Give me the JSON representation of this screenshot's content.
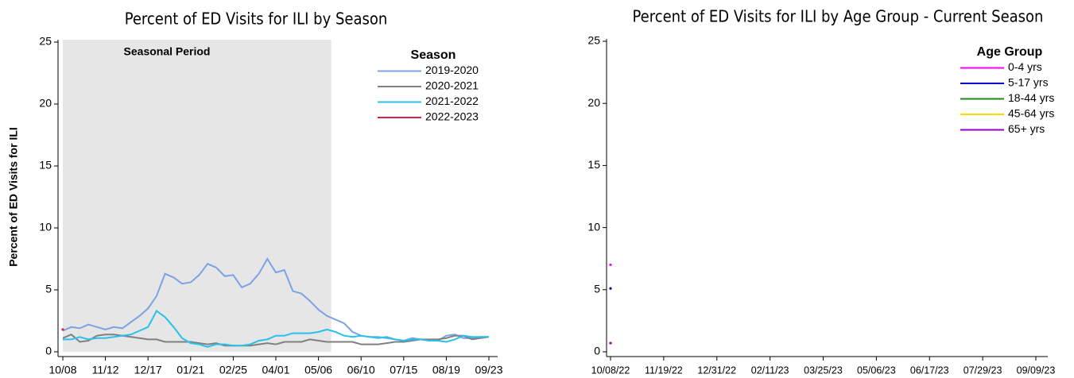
{
  "chart_data": [
    {
      "type": "line",
      "title": "Percent of ED Visits for ILI by Season",
      "y_label": "Percent of ED Visits for ILI",
      "categories": [
        "10/08",
        null,
        null,
        null,
        null,
        "11/12",
        null,
        null,
        null,
        null,
        "12/17",
        null,
        null,
        null,
        null,
        "01/21",
        null,
        null,
        null,
        null,
        "02/25",
        null,
        null,
        null,
        null,
        "04/01",
        null,
        null,
        null,
        null,
        "05/06",
        null,
        null,
        null,
        null,
        "06/10",
        null,
        null,
        null,
        null,
        "07/15",
        null,
        null,
        null,
        null,
        "08/19",
        null,
        null,
        null,
        null,
        "09/23"
      ],
      "ylim": [
        0,
        25
      ],
      "yticks": [
        0,
        5,
        10,
        15,
        20,
        25
      ],
      "seasonal_period": {
        "label": "Seasonal Period",
        "start": 0,
        "end": 31.5
      },
      "legend_title": "Season",
      "legend": "upper right",
      "series": [
        {
          "name": "2019-2020",
          "color": "#7ba3e3",
          "values": [
            1.7,
            2.0,
            1.9,
            2.2,
            2.0,
            1.8,
            2.0,
            1.9,
            2.4,
            2.9,
            3.5,
            4.5,
            6.3,
            6.0,
            5.5,
            5.6,
            6.2,
            7.1,
            6.8,
            6.1,
            6.2,
            5.2,
            5.5,
            6.3,
            7.5,
            6.4,
            6.6,
            4.9,
            4.7,
            4.1,
            3.4,
            2.9,
            2.6,
            2.3,
            1.6,
            1.3,
            1.2,
            1.2,
            1.1,
            1.0,
            0.9,
            1.1,
            1.0,
            0.9,
            0.9,
            1.3,
            1.4,
            1.1,
            1.1,
            1.2,
            1.2
          ]
        },
        {
          "name": "2020-2021",
          "color": "#808080",
          "values": [
            1.1,
            1.4,
            0.8,
            0.9,
            1.3,
            1.4,
            1.4,
            1.3,
            1.2,
            1.1,
            1.0,
            1.0,
            0.8,
            0.8,
            0.8,
            0.8,
            0.7,
            0.6,
            0.7,
            0.5,
            0.5,
            0.5,
            0.5,
            0.6,
            0.7,
            0.6,
            0.8,
            0.8,
            0.8,
            1.0,
            0.9,
            0.8,
            0.8,
            0.8,
            0.8,
            0.6,
            0.6,
            0.6,
            0.7,
            0.8,
            0.8,
            0.9,
            1.0,
            1.0,
            1.0,
            1.1,
            1.3,
            1.3,
            1.0,
            1.1,
            1.2
          ]
        },
        {
          "name": "2021-2022",
          "color": "#29c0ec",
          "values": [
            1.0,
            1.0,
            1.2,
            1.0,
            1.1,
            1.1,
            1.2,
            1.3,
            1.4,
            1.7,
            2.0,
            3.3,
            2.8,
            2.0,
            1.1,
            0.7,
            0.6,
            0.4,
            0.6,
            0.6,
            0.5,
            0.5,
            0.6,
            0.9,
            1.0,
            1.3,
            1.3,
            1.5,
            1.5,
            1.5,
            1.6,
            1.8,
            1.6,
            1.3,
            1.2,
            1.3,
            1.2,
            1.1,
            1.2,
            1.0,
            0.9,
            1.0,
            1.0,
            0.9,
            0.9,
            0.8,
            1.0,
            1.3,
            1.2,
            1.2,
            1.2
          ]
        },
        {
          "name": "2022-2023",
          "color": "#d6224a",
          "values": [
            1.8,
            null,
            null,
            null,
            null,
            null,
            null,
            null,
            null,
            null,
            null,
            null,
            null,
            null,
            null,
            null,
            null,
            null,
            null,
            null,
            null,
            null,
            null,
            null,
            null,
            null,
            null,
            null,
            null,
            null,
            null,
            null,
            null,
            null,
            null,
            null,
            null,
            null,
            null,
            null,
            null,
            null,
            null,
            null,
            null,
            null,
            null,
            null,
            null,
            null,
            null
          ]
        }
      ]
    },
    {
      "type": "line",
      "title": "Percent of ED Visits for ILI by Age Group - Current Season",
      "categories": [
        "10/08/22",
        null,
        null,
        null,
        null,
        null,
        "11/19/22",
        null,
        null,
        null,
        null,
        null,
        "12/31/22",
        null,
        null,
        null,
        null,
        null,
        "02/11/23",
        null,
        null,
        null,
        null,
        null,
        "03/25/23",
        null,
        null,
        null,
        null,
        null,
        "05/06/23",
        null,
        null,
        null,
        null,
        null,
        "06/17/23",
        null,
        null,
        null,
        null,
        null,
        "07/29/23",
        null,
        null,
        null,
        null,
        null,
        "09/09/23"
      ],
      "ylim": [
        0,
        25
      ],
      "yticks": [
        0,
        5,
        10,
        15,
        20,
        25
      ],
      "legend_title": "Age Group",
      "legend": "upper right",
      "series": [
        {
          "name": "0-4 yrs",
          "color": "#ff00ff",
          "values": [
            7.0,
            null,
            null,
            null,
            null,
            null,
            null,
            null,
            null,
            null,
            null,
            null,
            null,
            null,
            null,
            null,
            null,
            null,
            null,
            null,
            null,
            null,
            null,
            null,
            null,
            null,
            null,
            null,
            null,
            null,
            null,
            null,
            null,
            null,
            null,
            null,
            null,
            null,
            null,
            null,
            null,
            null,
            null,
            null,
            null,
            null,
            null,
            null,
            null
          ]
        },
        {
          "name": "5-17 yrs",
          "color": "#0000cc",
          "values": [
            5.1,
            null,
            null,
            null,
            null,
            null,
            null,
            null,
            null,
            null,
            null,
            null,
            null,
            null,
            null,
            null,
            null,
            null,
            null,
            null,
            null,
            null,
            null,
            null,
            null,
            null,
            null,
            null,
            null,
            null,
            null,
            null,
            null,
            null,
            null,
            null,
            null,
            null,
            null,
            null,
            null,
            null,
            null,
            null,
            null,
            null,
            null,
            null,
            null
          ]
        },
        {
          "name": "18-44 yrs",
          "color": "#1a8a1a",
          "values": [
            0.7,
            null,
            null,
            null,
            null,
            null,
            null,
            null,
            null,
            null,
            null,
            null,
            null,
            null,
            null,
            null,
            null,
            null,
            null,
            null,
            null,
            null,
            null,
            null,
            null,
            null,
            null,
            null,
            null,
            null,
            null,
            null,
            null,
            null,
            null,
            null,
            null,
            null,
            null,
            null,
            null,
            null,
            null,
            null,
            null,
            null,
            null,
            null,
            null
          ]
        },
        {
          "name": "45-64 yrs",
          "color": "#ffd700",
          "values": [
            0.7,
            null,
            null,
            null,
            null,
            null,
            null,
            null,
            null,
            null,
            null,
            null,
            null,
            null,
            null,
            null,
            null,
            null,
            null,
            null,
            null,
            null,
            null,
            null,
            null,
            null,
            null,
            null,
            null,
            null,
            null,
            null,
            null,
            null,
            null,
            null,
            null,
            null,
            null,
            null,
            null,
            null,
            null,
            null,
            null,
            null,
            null,
            null,
            null
          ]
        },
        {
          "name": "65+ yrs",
          "color": "#9900cc",
          "values": [
            0.7,
            null,
            null,
            null,
            null,
            null,
            null,
            null,
            null,
            null,
            null,
            null,
            null,
            null,
            null,
            null,
            null,
            null,
            null,
            null,
            null,
            null,
            null,
            null,
            null,
            null,
            null,
            null,
            null,
            null,
            null,
            null,
            null,
            null,
            null,
            null,
            null,
            null,
            null,
            null,
            null,
            null,
            null,
            null,
            null,
            null,
            null,
            null,
            null
          ]
        }
      ]
    }
  ]
}
